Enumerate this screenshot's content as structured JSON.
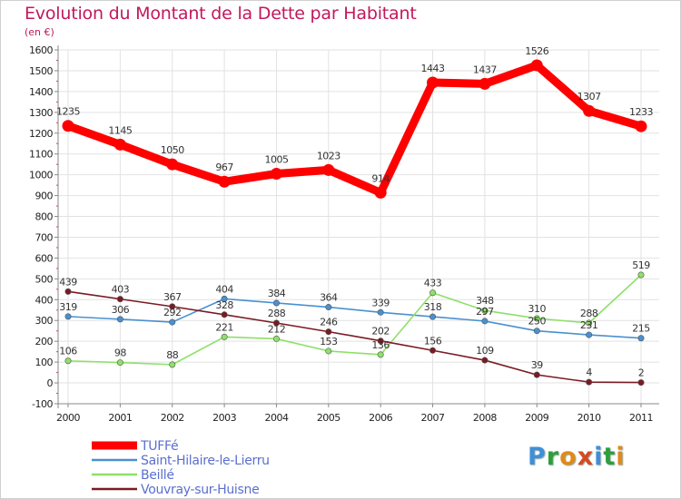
{
  "title": "Evolution du Montant de la Dette par Habitant",
  "subtitle": "(en €)",
  "logo": {
    "text": [
      "P",
      "r",
      "o",
      "x",
      "i",
      "t",
      "i"
    ],
    "colors": [
      "#3f8fd8",
      "#2e9f3a",
      "#e08a1a",
      "#d24b1f",
      "#3f8fd8",
      "#2e9f3a",
      "#e08a1a"
    ]
  },
  "chart_data": {
    "type": "line",
    "x": [
      "2000",
      "2001",
      "2002",
      "2003",
      "2004",
      "2005",
      "2006",
      "2007",
      "2008",
      "2009",
      "2010",
      "2011"
    ],
    "ylim": [
      -100,
      1600
    ],
    "yticks": [
      -100,
      0,
      100,
      200,
      300,
      400,
      500,
      600,
      700,
      800,
      900,
      1000,
      1100,
      1200,
      1300,
      1400,
      1500,
      1600
    ],
    "grid": true,
    "legend_position": "bottom-left",
    "series": [
      {
        "name": "TUFFé",
        "color": "#ff0000",
        "width": "thick",
        "values": [
          1235,
          1145,
          1050,
          967,
          1005,
          1023,
          914,
          1443,
          1437,
          1526,
          1307,
          1233
        ],
        "labels": [
          "1235",
          "1145",
          "1050",
          "967",
          "1005",
          "1023",
          "914",
          "1443",
          "1437",
          "1526",
          "1307",
          "1233"
        ]
      },
      {
        "name": "Saint-Hilaire-le-Lierru",
        "color": "#4a90d0",
        "width": "thin",
        "values": [
          319,
          306,
          292,
          404,
          384,
          364,
          339,
          318,
          297,
          250,
          231,
          215
        ],
        "labels": [
          "319",
          "306",
          "292",
          "404",
          "384",
          "364",
          "339",
          "318",
          "297",
          "250",
          "231",
          "215"
        ]
      },
      {
        "name": "Beillé",
        "color": "#8ee06a",
        "width": "thin",
        "values": [
          106,
          98,
          88,
          221,
          212,
          153,
          136,
          433,
          348,
          310,
          288,
          519
        ],
        "labels": [
          "106",
          "98",
          "88",
          "221",
          "212",
          "153",
          "136",
          "433",
          "348",
          "310",
          "288",
          "519"
        ]
      },
      {
        "name": "Vouvray-sur-Huisne",
        "color": "#7a1a24",
        "width": "thin",
        "values": [
          439,
          403,
          367,
          328,
          288,
          246,
          202,
          156,
          109,
          39,
          4,
          2
        ],
        "labels": [
          "439",
          "403",
          "367",
          "328",
          "288",
          "246",
          "202",
          "156",
          "109",
          "39",
          "4",
          "2"
        ]
      }
    ]
  }
}
